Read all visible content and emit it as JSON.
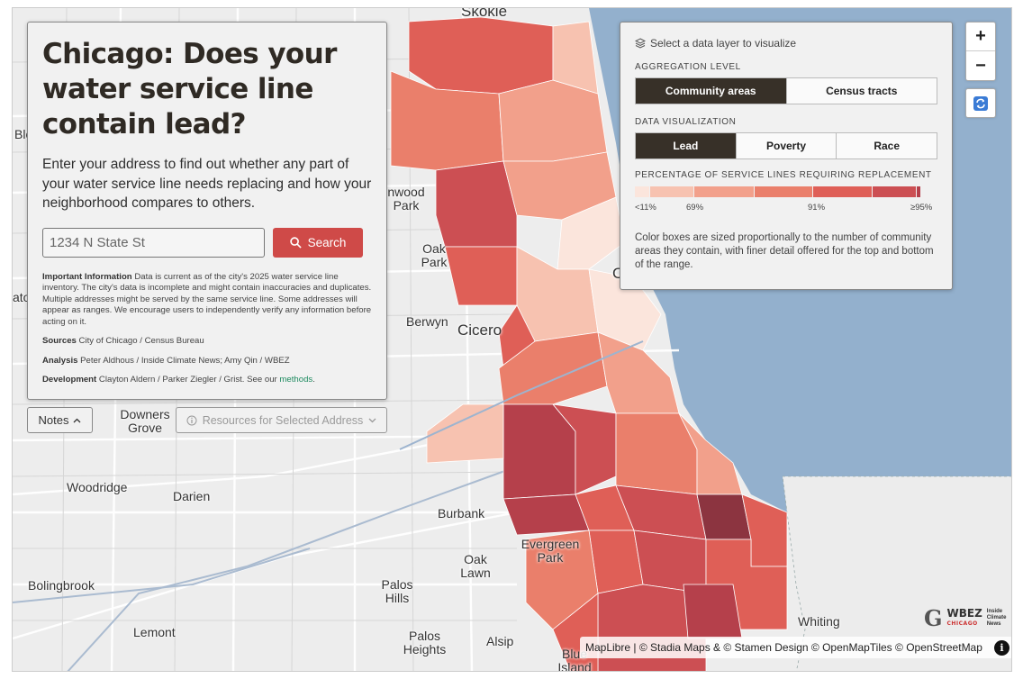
{
  "info_panel": {
    "title": "Chicago: Does your water service line contain lead?",
    "intro": "Enter your address to find out whether any part of your water service line needs replacing and how your neighborhood compares to others.",
    "search": {
      "placeholder": "1234 N State St",
      "button_label": "Search",
      "icon": "search-icon"
    },
    "important_label": "Important Information",
    "important_text": "Data is current as of the city's 2025 water service line inventory. The city's data is incomplete and might contain inaccuracies and duplicates. Multiple addresses might be served by the same service line. Some addresses will appear as ranges. We encourage users to independently verify any information before acting on it.",
    "sources_label": "Sources",
    "sources_text": "City of Chicago / Census Bureau",
    "analysis_label": "Analysis",
    "analysis_text": "Peter Aldhous / Inside Climate News; Amy Qin / WBEZ",
    "development_label": "Development",
    "development_text": "Clayton Aldern / Parker Ziegler / Grist. See our",
    "methods_link": "methods",
    "development_end": "."
  },
  "notes_button": {
    "label": "Notes",
    "icon": "chevron-up-icon"
  },
  "resources_button": {
    "label": "Resources for Selected Address",
    "icon": "info-circle-icon",
    "chevron": "chevron-down-icon"
  },
  "layer_panel": {
    "header": "Select a data layer to visualize",
    "header_icon": "layers-icon",
    "aggregation_label": "AGGREGATION LEVEL",
    "aggregation_options": [
      "Community areas",
      "Census tracts"
    ],
    "aggregation_selected": "Community areas",
    "visualization_label": "DATA VISUALIZATION",
    "visualization_options": [
      "Lead",
      "Poverty",
      "Race"
    ],
    "visualization_selected": "Lead",
    "legend_title": "PERCENTAGE OF SERVICE LINES REQUIRING REPLACEMENT",
    "legend_ticks": [
      "<11%",
      "69%",
      "91%",
      "≥95%"
    ],
    "legend_colors": [
      "#fbe5dc",
      "#f7c2b0",
      "#f2a08b",
      "#ea7f6b",
      "#df5f57",
      "#cc4f53",
      "#b5404b"
    ],
    "legend_note": "Color boxes are sized proportionally to the number of community areas they contain, with finer detail offered for the top and bottom of the range."
  },
  "controls": {
    "zoom_in": "+",
    "zoom_out": "−",
    "reset_icon": "refresh-icon"
  },
  "attribution": "MapLibre | © Stadia Maps & © Stamen Design © OpenMapTiles © OpenStreetMap",
  "logos": {
    "g": "G",
    "wbez": "WBEZ",
    "wbez_sub": "CHICAGO",
    "icn": "Inside Climate News"
  },
  "map_labels": [
    "Skokie",
    "Blo",
    "nwood Park",
    "Oak Park",
    "Berwyn",
    "Cicero",
    "ato",
    "Downers Grove",
    "Woodridge",
    "Darien",
    "Burbank",
    "Evergreen Park",
    "Oak Lawn",
    "Bolingbrook",
    "Palos Hills",
    "Lemont",
    "Palos Heights",
    "Alsip",
    "Blue Island",
    "Whiting",
    "C"
  ]
}
